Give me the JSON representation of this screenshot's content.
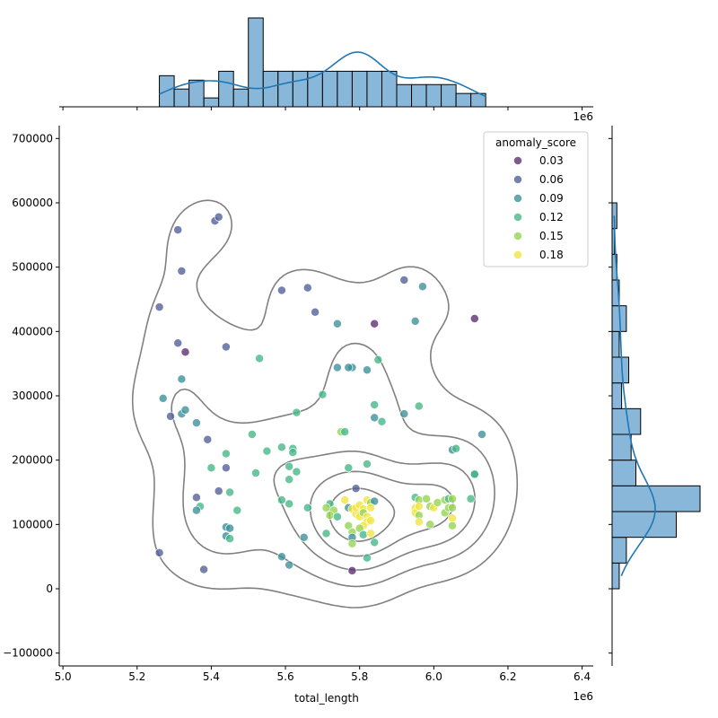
{
  "chart_data": {
    "type": "scatter",
    "title": "",
    "xlabel": "total_length",
    "ylabel": "",
    "x_offset_label": "1e6",
    "x_scale": 1000000,
    "xlim": [
      4.99,
      6.43
    ],
    "ylim": [
      -120000,
      720000
    ],
    "xticks": [
      5.0,
      5.2,
      5.4,
      5.6,
      5.8,
      6.0,
      6.2,
      6.4
    ],
    "xtick_labels": [
      "5.0",
      "5.2",
      "5.4",
      "5.6",
      "5.8",
      "6.0",
      "6.2",
      "6.4"
    ],
    "yticks": [
      -100000,
      0,
      100000,
      200000,
      300000,
      400000,
      500000,
      600000,
      700000
    ],
    "ytick_labels": [
      "−100000",
      "0",
      "100000",
      "200000",
      "300000",
      "400000",
      "500000",
      "600000",
      "700000"
    ],
    "grid": false,
    "legend": {
      "title": "anomaly_score",
      "placement": "top-right",
      "entries": [
        {
          "label": "0.03",
          "color": "#5b2c70"
        },
        {
          "label": "0.06",
          "color": "#4f5f96"
        },
        {
          "label": "0.09",
          "color": "#3a8f99"
        },
        {
          "label": "0.12",
          "color": "#42b786"
        },
        {
          "label": "0.15",
          "color": "#93d450"
        },
        {
          "label": "0.18",
          "color": "#f1e43a"
        }
      ]
    },
    "colors": {
      "hist_fill": "#89b7da",
      "kde_line": "#1f77b4",
      "contour": "#808080"
    },
    "points": [
      [
        5.31,
        558000,
        0.06
      ],
      [
        5.41,
        572000,
        0.06
      ],
      [
        5.42,
        578000,
        0.06
      ],
      [
        5.32,
        494000,
        0.06
      ],
      [
        5.26,
        438000,
        0.06
      ],
      [
        5.31,
        382000,
        0.06
      ],
      [
        5.33,
        368000,
        0.03
      ],
      [
        5.44,
        376000,
        0.06
      ],
      [
        5.32,
        326000,
        0.09
      ],
      [
        5.27,
        296000,
        0.09
      ],
      [
        5.29,
        268000,
        0.06
      ],
      [
        5.32,
        272000,
        0.09
      ],
      [
        5.33,
        278000,
        0.09
      ],
      [
        5.36,
        258000,
        0.09
      ],
      [
        5.39,
        232000,
        0.06
      ],
      [
        5.44,
        210000,
        0.12
      ],
      [
        5.4,
        188000,
        0.12
      ],
      [
        5.44,
        188000,
        0.06
      ],
      [
        5.42,
        152000,
        0.06
      ],
      [
        5.36,
        142000,
        0.06
      ],
      [
        5.45,
        150000,
        0.12
      ],
      [
        5.37,
        128000,
        0.12
      ],
      [
        5.36,
        122000,
        0.09
      ],
      [
        5.47,
        122000,
        0.12
      ],
      [
        5.44,
        96000,
        0.09
      ],
      [
        5.45,
        94000,
        0.09
      ],
      [
        5.44,
        82000,
        0.09
      ],
      [
        5.45,
        78000,
        0.12
      ],
      [
        5.26,
        56000,
        0.06
      ],
      [
        5.38,
        30000,
        0.06
      ],
      [
        5.51,
        240000,
        0.12
      ],
      [
        5.52,
        180000,
        0.12
      ],
      [
        5.53,
        358000,
        0.12
      ],
      [
        5.55,
        214000,
        0.12
      ],
      [
        5.59,
        464000,
        0.06
      ],
      [
        5.66,
        468000,
        0.06
      ],
      [
        5.68,
        430000,
        0.06
      ],
      [
        5.59,
        220000,
        0.12
      ],
      [
        5.62,
        218000,
        0.12
      ],
      [
        5.62,
        212000,
        0.12
      ],
      [
        5.63,
        274000,
        0.12
      ],
      [
        5.61,
        190000,
        0.12
      ],
      [
        5.63,
        182000,
        0.12
      ],
      [
        5.61,
        170000,
        0.12
      ],
      [
        5.59,
        138000,
        0.12
      ],
      [
        5.61,
        132000,
        0.12
      ],
      [
        5.66,
        126000,
        0.12
      ],
      [
        5.65,
        80000,
        0.09
      ],
      [
        5.59,
        50000,
        0.09
      ],
      [
        5.61,
        37000,
        0.09
      ],
      [
        5.7,
        302000,
        0.12
      ],
      [
        5.74,
        412000,
        0.09
      ],
      [
        5.74,
        344000,
        0.09
      ],
      [
        5.78,
        344000,
        0.09
      ],
      [
        5.77,
        344000,
        0.09
      ],
      [
        5.75,
        244000,
        0.15
      ],
      [
        5.76,
        244000,
        0.12
      ],
      [
        5.77,
        188000,
        0.12
      ],
      [
        5.84,
        412000,
        0.03
      ],
      [
        5.85,
        356000,
        0.12
      ],
      [
        5.82,
        340000,
        0.09
      ],
      [
        5.84,
        286000,
        0.12
      ],
      [
        5.84,
        266000,
        0.09
      ],
      [
        5.86,
        260000,
        0.12
      ],
      [
        5.82,
        194000,
        0.12
      ],
      [
        5.79,
        156000,
        0.06
      ],
      [
        5.72,
        132000,
        0.12
      ],
      [
        5.71,
        126000,
        0.15
      ],
      [
        5.73,
        122000,
        0.15
      ],
      [
        5.72,
        114000,
        0.15
      ],
      [
        5.74,
        112000,
        0.12
      ],
      [
        5.76,
        138000,
        0.18
      ],
      [
        5.77,
        126000,
        0.09
      ],
      [
        5.78,
        124000,
        0.18
      ],
      [
        5.79,
        116000,
        0.18
      ],
      [
        5.8,
        112000,
        0.18
      ],
      [
        5.79,
        126000,
        0.18
      ],
      [
        5.8,
        130000,
        0.18
      ],
      [
        5.81,
        124000,
        0.18
      ],
      [
        5.81,
        118000,
        0.15
      ],
      [
        5.82,
        112000,
        0.18
      ],
      [
        5.82,
        138000,
        0.18
      ],
      [
        5.83,
        134000,
        0.15
      ],
      [
        5.84,
        136000,
        0.09
      ],
      [
        5.83,
        126000,
        0.18
      ],
      [
        5.82,
        104000,
        0.18
      ],
      [
        5.81,
        98000,
        0.18
      ],
      [
        5.83,
        106000,
        0.18
      ],
      [
        5.8,
        94000,
        0.15
      ],
      [
        5.77,
        98000,
        0.15
      ],
      [
        5.78,
        88000,
        0.15
      ],
      [
        5.78,
        80000,
        0.09
      ],
      [
        5.78,
        70000,
        0.15
      ],
      [
        5.81,
        84000,
        0.12
      ],
      [
        5.83,
        86000,
        0.18
      ],
      [
        5.84,
        72000,
        0.12
      ],
      [
        5.82,
        48000,
        0.12
      ],
      [
        5.78,
        28000,
        0.03
      ],
      [
        5.71,
        86000,
        0.12
      ],
      [
        5.92,
        480000,
        0.06
      ],
      [
        5.95,
        416000,
        0.09
      ],
      [
        5.97,
        470000,
        0.09
      ],
      [
        5.92,
        272000,
        0.09
      ],
      [
        5.96,
        284000,
        0.12
      ],
      [
        5.95,
        142000,
        0.12
      ],
      [
        5.96,
        138000,
        0.15
      ],
      [
        5.95,
        126000,
        0.18
      ],
      [
        5.95,
        118000,
        0.18
      ],
      [
        5.96,
        128000,
        0.18
      ],
      [
        5.96,
        114000,
        0.15
      ],
      [
        5.96,
        104000,
        0.18
      ],
      [
        5.98,
        140000,
        0.15
      ],
      [
        5.99,
        128000,
        0.15
      ],
      [
        6.0,
        126000,
        0.18
      ],
      [
        5.99,
        100000,
        0.15
      ],
      [
        6.01,
        134000,
        0.15
      ],
      [
        6.03,
        138000,
        0.15
      ],
      [
        6.03,
        118000,
        0.15
      ],
      [
        6.04,
        126000,
        0.15
      ],
      [
        6.04,
        140000,
        0.12
      ],
      [
        6.05,
        110000,
        0.18
      ],
      [
        6.05,
        140000,
        0.15
      ],
      [
        6.05,
        126000,
        0.15
      ],
      [
        6.05,
        98000,
        0.15
      ],
      [
        6.05,
        216000,
        0.09
      ],
      [
        6.06,
        218000,
        0.12
      ],
      [
        6.11,
        178000,
        0.09
      ],
      [
        6.11,
        420000,
        0.03
      ],
      [
        6.13,
        240000,
        0.09
      ],
      [
        6.1,
        140000,
        0.12
      ],
      [
        6.11,
        178000,
        0.12
      ]
    ],
    "marginal_x_hist": {
      "bin_edges": [
        5.26,
        5.3,
        5.34,
        5.38,
        5.42,
        5.46,
        5.5,
        5.54,
        5.58,
        5.62,
        5.66,
        5.7,
        5.74,
        5.78,
        5.82,
        5.86,
        5.9,
        5.94,
        5.98,
        6.02,
        6.06,
        6.1,
        6.14
      ],
      "counts": [
        7,
        4,
        6,
        2,
        8,
        4,
        20,
        8,
        8,
        8,
        8,
        8,
        8,
        8,
        8,
        8,
        5,
        5,
        5,
        5,
        3,
        3
      ]
    }
  }
}
